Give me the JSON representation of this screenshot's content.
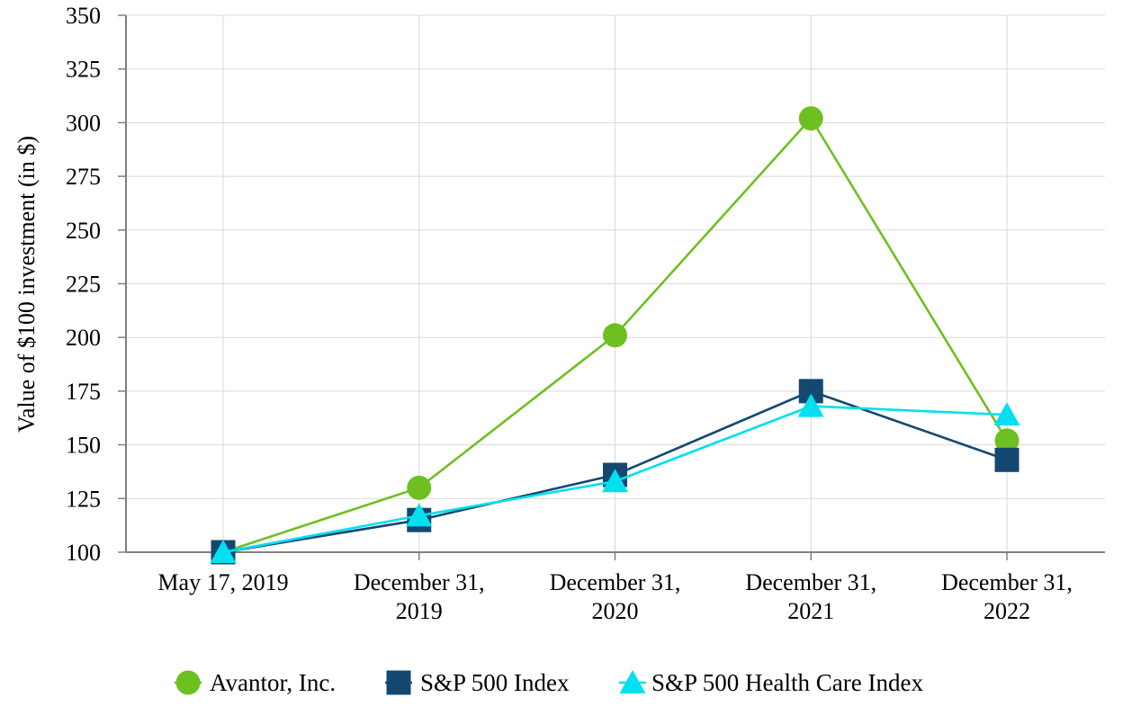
{
  "page": {
    "background": "#FFFFFF"
  },
  "chart_data": {
    "type": "line",
    "title": "",
    "xlabel": "",
    "ylabel": "Value of $100 investment (in $)",
    "categories": [
      "May 17, 2019",
      "December 31,\n2019",
      "December 31,\n2020",
      "December 31,\n2021",
      "December 31,\n2022"
    ],
    "series": [
      {
        "name": "Avantor, Inc.",
        "marker": "circle",
        "color": "#6EC021",
        "values": [
          100,
          130,
          201,
          302,
          152
        ]
      },
      {
        "name": "S&P 500 Index",
        "marker": "square",
        "color": "#144870",
        "values": [
          100,
          115,
          136,
          175,
          143
        ]
      },
      {
        "name": "S&P 500 Health Care Index",
        "marker": "triangle",
        "color": "#00E0F0",
        "values": [
          100,
          117,
          133,
          168,
          164
        ]
      }
    ],
    "ylim": [
      100,
      350
    ],
    "ytick_step": 25,
    "yticks": [
      100,
      125,
      150,
      175,
      200,
      225,
      250,
      275,
      300,
      325,
      350
    ],
    "grid": true,
    "legend_position": "bottom",
    "grid_color": "#D9D9D9",
    "axis_color": "#808080",
    "text_color": "#000000"
  }
}
